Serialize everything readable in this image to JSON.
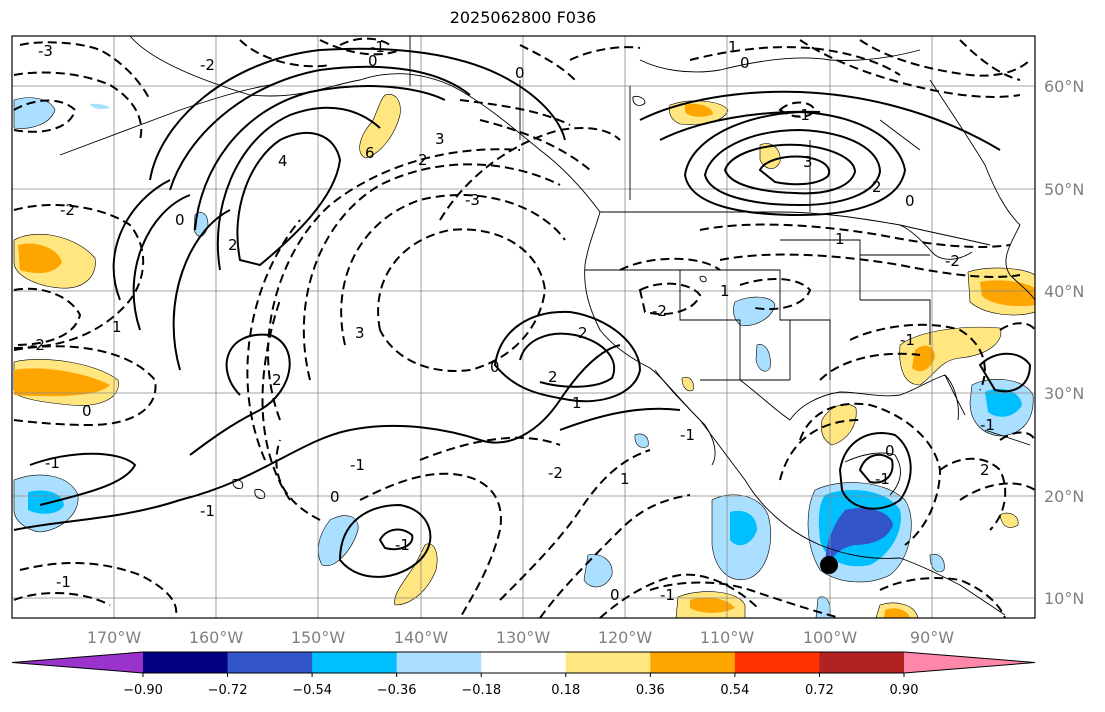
{
  "title": "2025062800 F036",
  "lat_labels": [
    "60°N",
    "50°N",
    "40°N",
    "30°N",
    "20°N",
    "10°N"
  ],
  "lon_labels": [
    "170°W",
    "160°W",
    "150°W",
    "140°W",
    "130°W",
    "120°W",
    "110°W",
    "100°W",
    "90°W"
  ],
  "colorbar": {
    "colors": [
      "#9933cc",
      "#000080",
      "#3355cc",
      "#00bfff",
      "#aadfff",
      "#ffffff",
      "#ffe680",
      "#ffa500",
      "#ff3300",
      "#b22222",
      "#ff88aa"
    ],
    "tick_labels": [
      "−0.90",
      "−0.72",
      "−0.54",
      "−0.36",
      "−0.18",
      "0.18",
      "0.36",
      "0.54",
      "0.72",
      "0.90"
    ]
  },
  "contour_labels": [
    "-3",
    "-2",
    "0",
    "-1",
    "2",
    "4",
    "6",
    "3",
    "0",
    "2",
    "-2",
    "-3",
    "3",
    "0",
    "2",
    "1",
    "-1",
    "-1",
    "1",
    "0",
    "-1",
    "2",
    "0",
    "-2",
    "1",
    "3",
    "2",
    "0",
    "1",
    "-1",
    "0",
    "-1",
    "-2",
    "-1",
    "-1",
    "-1",
    "0",
    "-2",
    "1",
    "-1",
    "1",
    "-1",
    "2",
    "0",
    "-2",
    "2",
    "-1",
    "0"
  ],
  "marker": "black-dot"
}
